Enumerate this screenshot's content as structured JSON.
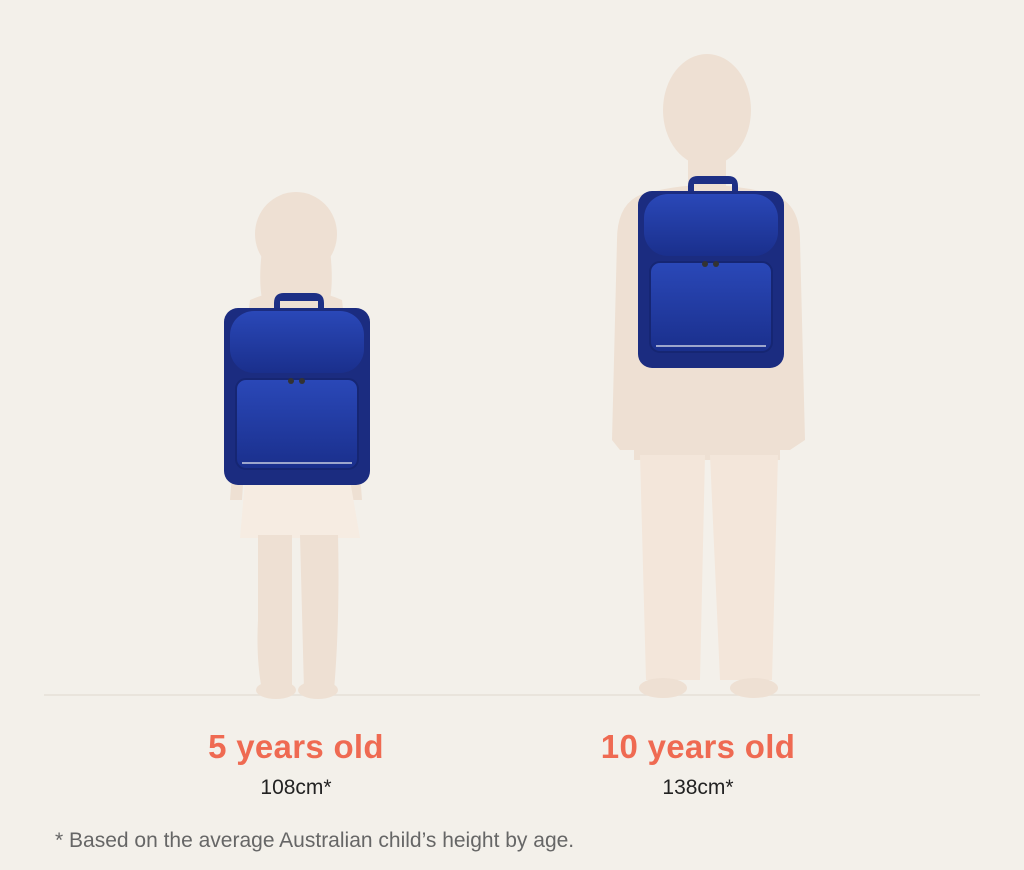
{
  "colors": {
    "accent": "#ef6a52",
    "silhouette": "#eee0d3",
    "backpack": "#1f3aa0",
    "background": "#f3f0ea"
  },
  "figures": [
    {
      "age_label": "5 years old",
      "height_label": "108cm*"
    },
    {
      "age_label": "10 years old",
      "height_label": "138cm*"
    }
  ],
  "footnote": "* Based on the average Australian child’s height by age."
}
